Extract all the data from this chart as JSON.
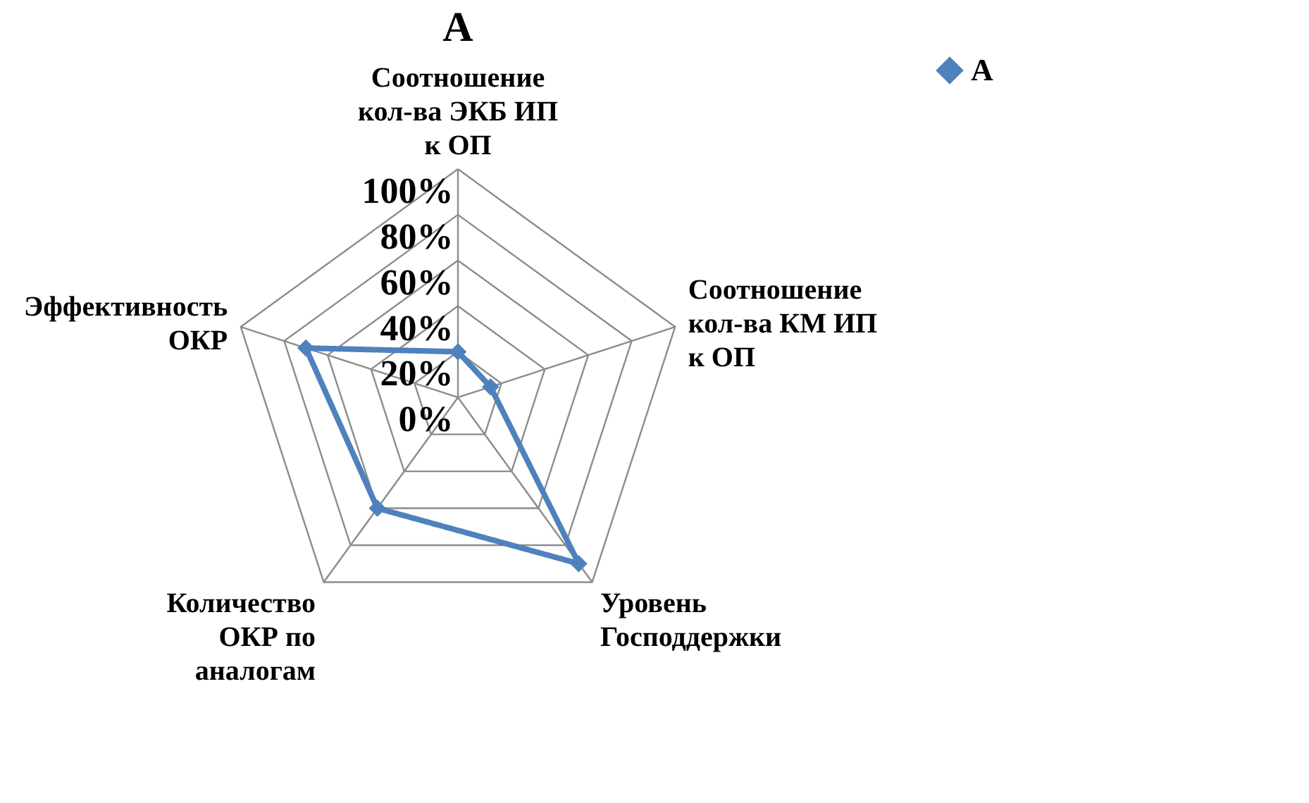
{
  "chart_data": {
    "type": "radar",
    "title": "А",
    "categories": [
      "Соотношение кол-ва ЭКБ ИП к ОП",
      "Соотношение кол-ва КМ ИП к ОП",
      "Уровень Господдержки",
      "Количество ОКР по аналогам",
      "Эффективность ОКР"
    ],
    "series": [
      {
        "name": "А",
        "color": "#4f81bd",
        "values": [
          20,
          15,
          90,
          60,
          70
        ]
      }
    ],
    "ylim": [
      0,
      100
    ],
    "yticks": [
      {
        "value": 0,
        "label": "0%"
      },
      {
        "value": 20,
        "label": "20%"
      },
      {
        "value": 40,
        "label": "40%"
      },
      {
        "value": 60,
        "label": "60%"
      },
      {
        "value": 80,
        "label": "80%"
      },
      {
        "value": 100,
        "label": "100%"
      }
    ],
    "grid": true,
    "legend": "right",
    "marker": "diamond",
    "line_style": "solid"
  }
}
